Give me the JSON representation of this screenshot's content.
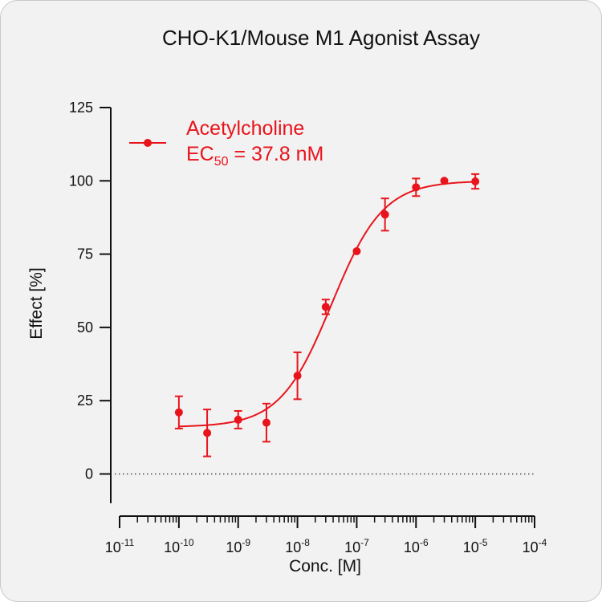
{
  "chart_data": {
    "type": "scatter",
    "title": "CHO-K1/Mouse M1 Agonist Assay",
    "xlabel": "Conc. [M]",
    "ylabel": "Effect  [%]",
    "x_scale": "log",
    "xlim": [
      1e-11,
      0.0001
    ],
    "ylim": [
      -10,
      125
    ],
    "x_ticks": [
      {
        "base": "10",
        "exp": "-11",
        "value": 1e-11
      },
      {
        "base": "10",
        "exp": "-10",
        "value": 1e-10
      },
      {
        "base": "10",
        "exp": "-9",
        "value": 1e-09
      },
      {
        "base": "10",
        "exp": "-8",
        "value": 1e-08
      },
      {
        "base": "10",
        "exp": "-7",
        "value": 1e-07
      },
      {
        "base": "10",
        "exp": "-6",
        "value": 1e-06
      },
      {
        "base": "10",
        "exp": "-5",
        "value": 1e-05
      },
      {
        "base": "10",
        "exp": "-4",
        "value": 0.0001
      }
    ],
    "y_ticks": [
      {
        "label": "0",
        "value": 0
      },
      {
        "label": "25",
        "value": 25
      },
      {
        "label": "50",
        "value": 50
      },
      {
        "label": "75",
        "value": 75
      },
      {
        "label": "100",
        "value": 100
      },
      {
        "label": "125",
        "value": 125
      }
    ],
    "baseline": 0,
    "color": "#e8141c",
    "series": [
      {
        "name": "Acetylcholine",
        "ec50_prefix": "EC",
        "ec50_sub": "50",
        "ec50_value": " = 37.8 nM",
        "points": [
          {
            "x": 1e-10,
            "y": 21,
            "err": 5.5
          },
          {
            "x": 3e-10,
            "y": 14,
            "err": 8
          },
          {
            "x": 1e-09,
            "y": 18.5,
            "err": 3
          },
          {
            "x": 3e-09,
            "y": 17.5,
            "err": 6.5
          },
          {
            "x": 1e-08,
            "y": 33.5,
            "err": 8
          },
          {
            "x": 3e-08,
            "y": 57,
            "err": 2.5
          },
          {
            "x": 1e-07,
            "y": 76,
            "err": 0
          },
          {
            "x": 3e-07,
            "y": 88.5,
            "err": 5.5
          },
          {
            "x": 1e-06,
            "y": 97.8,
            "err": 3
          },
          {
            "x": 3e-06,
            "y": 100,
            "err": 0
          },
          {
            "x": 1e-05,
            "y": 99.8,
            "err": 2.5
          }
        ],
        "fit": {
          "bottom": 16,
          "top": 100,
          "ec50": 3.78e-08,
          "hill": 1,
          "x_range": [
            1e-10,
            1e-05
          ]
        }
      }
    ]
  }
}
